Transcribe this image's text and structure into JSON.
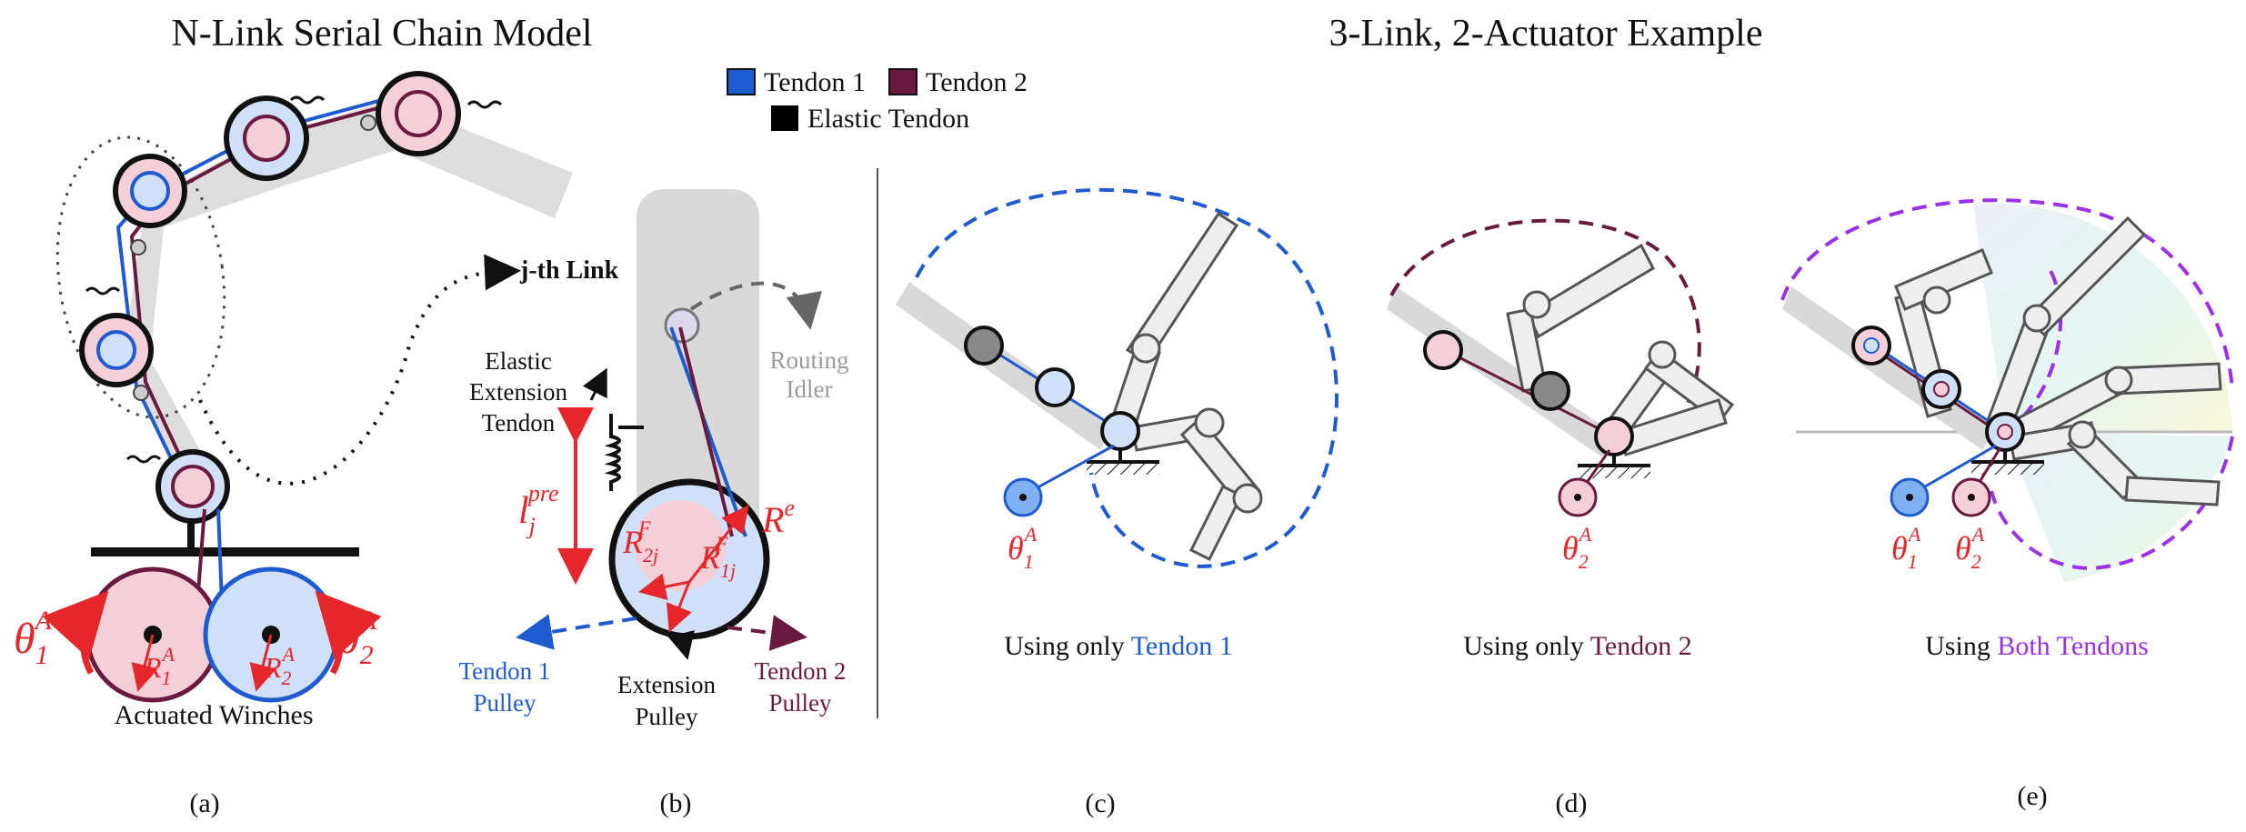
{
  "titles": {
    "left": "N-Link Serial Chain Model",
    "right": "3-Link, 2-Actuator Example"
  },
  "legend": {
    "tendon1": "Tendon 1",
    "tendon2": "Tendon 2",
    "elastic": "Elastic Tendon",
    "colors": {
      "tendon1": "#1f5bd0",
      "tendon2": "#6b1a3f",
      "elastic": "#000000"
    }
  },
  "panel_a": {
    "jth_link": "j-th Link",
    "winches": "Actuated Winches",
    "theta1": "θ",
    "theta2": "θ",
    "sub1": "1",
    "sub2": "2",
    "sup": "A",
    "R": "R"
  },
  "panel_b": {
    "elastic_line1": "Elastic",
    "elastic_line2": "Extension",
    "elastic_line3": "Tendon",
    "routing_line1": "Routing",
    "routing_line2": "Idler",
    "l": "l",
    "l_sub": "j",
    "l_sup": "pre",
    "Re": "R",
    "Re_sup": "e",
    "R2": "R",
    "R2_sub": "2j",
    "R1": "R",
    "R1_sub": "1j",
    "RF_sup": "F",
    "t1_line1": "Tendon 1",
    "t1_line2": "Pulley",
    "ext_line1": "Extension",
    "ext_line2": "Pulley",
    "t2_line1": "Tendon 2",
    "t2_line2": "Pulley"
  },
  "panel_c": {
    "caption_prefix": "Using only ",
    "caption_colored": "Tendon 1",
    "theta": "θ",
    "sub": "1",
    "sup": "A"
  },
  "panel_d": {
    "caption_prefix": "Using only ",
    "caption_colored": "Tendon 2",
    "theta": "θ",
    "sub": "2",
    "sup": "A"
  },
  "panel_e": {
    "caption_prefix": "Using ",
    "caption_colored": "Both Tendons",
    "theta1": "θ",
    "theta2": "θ",
    "sub1": "1",
    "sub2": "2",
    "sup": "A"
  },
  "labels": {
    "a": "(a)",
    "b": "(b)",
    "c": "(c)",
    "d": "(d)",
    "e": "(e)"
  }
}
